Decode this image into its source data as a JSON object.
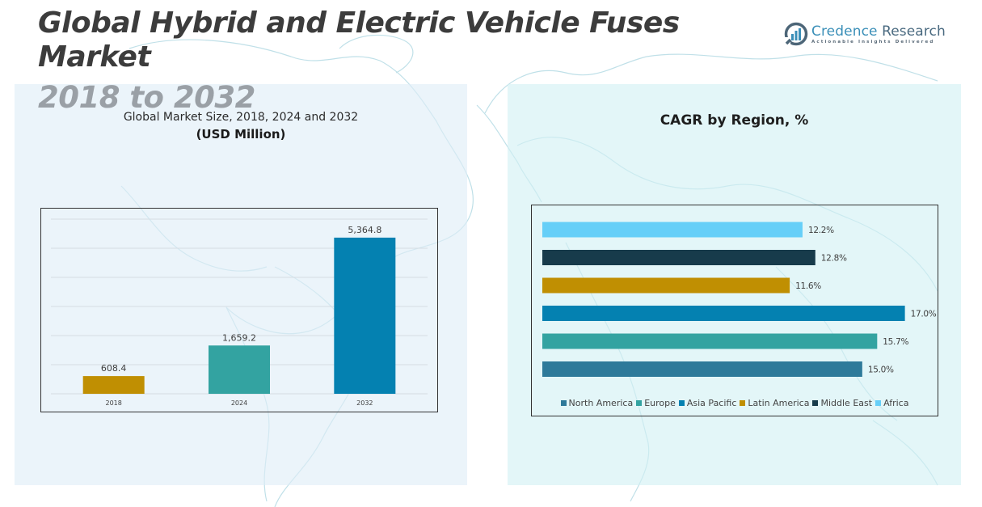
{
  "header": {
    "title_line1": "Global Hybrid and Electric Vehicle Fuses",
    "title_line2": "Market",
    "years": "2018 to 2032"
  },
  "logo": {
    "name_part1": "Credence",
    "name_part2": " Research",
    "tagline": "Actionable Insights Delivered",
    "icon": "bar-chart-circle-icon"
  },
  "colors": {
    "north_america": "#2e7a9a",
    "europe": "#33a3a1",
    "asia_pacific": "#0481b1",
    "latin_america": "#c08f02",
    "middle_east": "#173b4b",
    "africa": "#66cff8"
  },
  "chart_data": [
    {
      "type": "bar",
      "title": "Global Market Size, 2018, 2024 and 2032",
      "unit_label": "(USD Million)",
      "categories": [
        "2018",
        "2024",
        "2032"
      ],
      "values": [
        608.4,
        1659.2,
        5364.8
      ],
      "value_labels": [
        "608.4",
        "1,659.2",
        "5,364.8"
      ],
      "bar_colors": [
        "#c08f02",
        "#33a3a1",
        "#0481b1"
      ],
      "xlabel": "",
      "ylabel": "",
      "ylim": [
        0,
        6000
      ],
      "ytick_step": 1000,
      "y_tick_labels_visible": false,
      "grid": true
    },
    {
      "type": "bar",
      "orientation": "horizontal",
      "title": "CAGR by Region, %",
      "categories": [
        "Africa",
        "Middle East",
        "Latin America",
        "Asia Pacific",
        "Europe",
        "North America"
      ],
      "values": [
        12.2,
        12.8,
        11.6,
        17.0,
        15.7,
        15.0
      ],
      "value_labels": [
        "12.2%",
        "12.8%",
        "11.6%",
        "17.0%",
        "15.7%",
        "15.0%"
      ],
      "bar_colors": [
        "#66cff8",
        "#173b4b",
        "#c08f02",
        "#0481b1",
        "#33a3a1",
        "#2e7a9a"
      ],
      "xlim": [
        0,
        18
      ],
      "grid": false,
      "legend_position": "bottom",
      "legend": [
        {
          "label": "North America",
          "color": "#2e7a9a"
        },
        {
          "label": "Europe",
          "color": "#33a3a1"
        },
        {
          "label": "Asia Pacific",
          "color": "#0481b1"
        },
        {
          "label": "Latin America",
          "color": "#c08f02"
        },
        {
          "label": "Middle East",
          "color": "#173b4b"
        },
        {
          "label": "Africa",
          "color": "#66cff8"
        }
      ]
    }
  ]
}
